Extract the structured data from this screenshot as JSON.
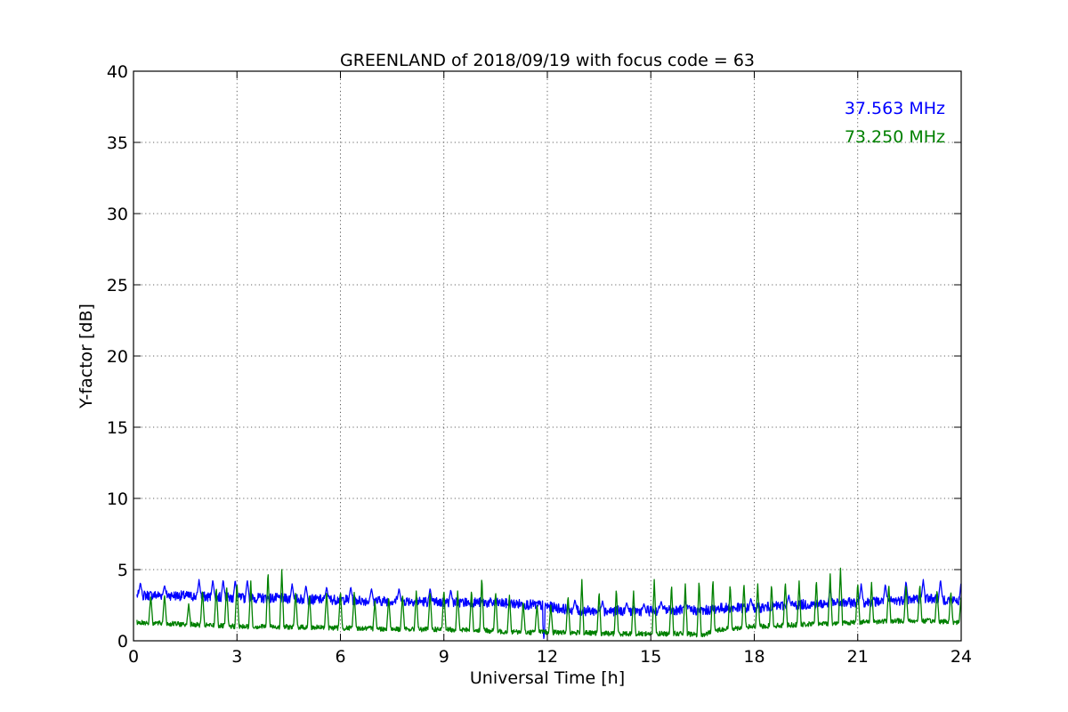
{
  "chart_data": {
    "type": "line",
    "title": "GREENLAND of 2018/09/19 with focus code = 63",
    "xlabel": "Universal Time [h]",
    "ylabel": "Y-factor [dB]",
    "xlim": [
      0,
      24
    ],
    "ylim": [
      0,
      40
    ],
    "xticks": [
      0,
      3,
      6,
      9,
      12,
      15,
      18,
      21,
      24
    ],
    "yticks": [
      0,
      5,
      10,
      15,
      20,
      25,
      30,
      35,
      40
    ],
    "grid": true,
    "legend_position": "top-right",
    "series": [
      {
        "name": "37.563 MHz",
        "color": "#0000ff",
        "x": [
          0.1,
          1,
          2,
          3,
          4,
          5,
          6,
          7,
          8,
          9,
          10,
          11,
          11.8,
          12.3,
          13,
          14,
          15,
          16,
          16.5,
          17,
          18,
          19,
          20,
          21,
          22,
          23,
          24
        ],
        "values": [
          3.2,
          3.2,
          3.1,
          3.0,
          3.0,
          2.9,
          2.9,
          2.8,
          2.8,
          2.7,
          2.7,
          2.6,
          2.5,
          2.3,
          2.1,
          2.1,
          2.1,
          2.2,
          2.1,
          2.3,
          2.3,
          2.5,
          2.6,
          2.7,
          2.8,
          3.0,
          2.8
        ],
        "spike_times": [
          0.2,
          0.9,
          1.9,
          2.3,
          2.6,
          2.95,
          3.3,
          4.6,
          5.0,
          5.6,
          6.3,
          6.9,
          7.7,
          8.6,
          9.2,
          12.8,
          13.6,
          14.3,
          14.8,
          15.3,
          16.0,
          17.9,
          19.0,
          20.2,
          21.1,
          21.8,
          22.4,
          22.9,
          23.4,
          24.0
        ],
        "spike_values": [
          4.1,
          3.9,
          4.3,
          4.3,
          4.3,
          4.3,
          4.3,
          4.0,
          3.9,
          3.8,
          3.8,
          3.7,
          3.7,
          3.7,
          3.6,
          2.9,
          2.8,
          2.7,
          2.6,
          2.8,
          2.8,
          3.0,
          3.2,
          3.7,
          4.0,
          4.0,
          4.2,
          4.3,
          4.3,
          4.2
        ],
        "dips": [
          {
            "x": 11.9,
            "value": 0.0
          }
        ]
      },
      {
        "name": "73.250 MHz",
        "color": "#008000",
        "x": [
          0.1,
          1,
          2,
          3,
          4,
          5,
          6,
          7,
          8,
          9,
          10,
          10.7,
          11.5,
          12,
          13,
          14,
          15,
          16,
          16.5,
          17,
          18,
          19,
          20,
          21,
          22,
          23,
          24
        ],
        "values": [
          1.3,
          1.2,
          1.1,
          1.0,
          1.0,
          0.95,
          0.9,
          0.85,
          0.8,
          0.8,
          0.75,
          0.65,
          0.6,
          0.6,
          0.55,
          0.5,
          0.5,
          0.5,
          0.4,
          0.8,
          1.0,
          1.1,
          1.2,
          1.3,
          1.4,
          1.4,
          1.3
        ],
        "spike_times": [
          0.5,
          0.9,
          1.6,
          2.0,
          2.4,
          2.7,
          3.0,
          3.4,
          3.9,
          4.3,
          4.7,
          5.1,
          5.6,
          6.0,
          6.4,
          7.0,
          7.4,
          7.8,
          8.2,
          8.6,
          9.0,
          9.4,
          9.8,
          10.1,
          10.5,
          10.9,
          11.3,
          11.7,
          12.1,
          12.6,
          13.0,
          13.5,
          14.0,
          14.5,
          15.1,
          15.6,
          16.0,
          16.4,
          16.8,
          17.3,
          17.7,
          18.1,
          18.5,
          18.9,
          19.3,
          19.8,
          20.2,
          20.5,
          21.0,
          21.4,
          21.9,
          22.4,
          22.8,
          23.3,
          23.7,
          24.0
        ],
        "spike_values": [
          3.2,
          3.3,
          2.6,
          3.6,
          3.8,
          3.9,
          4.1,
          4.2,
          4.9,
          5.0,
          3.5,
          3.3,
          3.5,
          3.5,
          3.4,
          2.8,
          3.1,
          3.3,
          3.5,
          3.5,
          3.6,
          3.5,
          3.6,
          4.5,
          3.5,
          3.2,
          2.8,
          2.6,
          2.5,
          3.2,
          4.3,
          3.5,
          3.7,
          3.5,
          4.3,
          4.0,
          4.0,
          4.3,
          4.4,
          4.0,
          4.1,
          4.0,
          4.0,
          4.2,
          4.2,
          4.3,
          4.7,
          5.1,
          4.1,
          4.1,
          4.0,
          4.0,
          4.0,
          3.6,
          3.5,
          3.3
        ]
      }
    ]
  }
}
